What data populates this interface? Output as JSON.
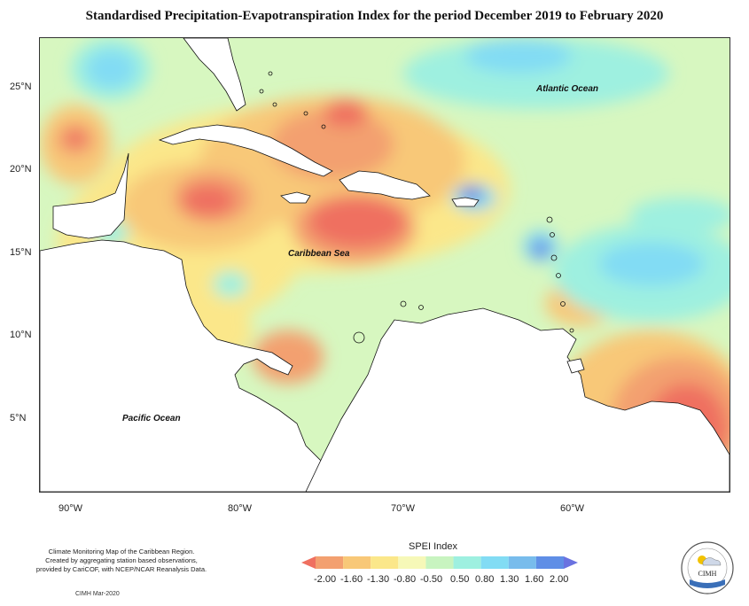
{
  "title": "Standardised Precipitation-Evapotranspiration Index for the period December 2019 to February 2020",
  "map": {
    "latitude_labels": [
      "25°N",
      "20°N",
      "15°N",
      "10°N",
      "5°N"
    ],
    "longitude_labels": [
      "90°W",
      "80°W",
      "70°W",
      "60°W"
    ],
    "ocean_labels": {
      "atlantic": "Atlantic Ocean",
      "caribbean": "Caribbean Sea",
      "pacific": "Pacific Ocean"
    },
    "background_color": "#d7f7c0"
  },
  "legend": {
    "title": "SPEI Index",
    "ticks": [
      "-2.00",
      "-1.60",
      "-1.30",
      "-0.80",
      "-0.50",
      "0.50",
      "0.80",
      "1.30",
      "1.60",
      "2.00"
    ],
    "colors": [
      "#ef7060",
      "#f3a070",
      "#f8c878",
      "#fbe78a",
      "#f6f8b8",
      "#c8f4c0",
      "#9ef0e0",
      "#82dcf4",
      "#78bcec",
      "#5f8ee6",
      "#6a72e0"
    ]
  },
  "footer": {
    "line1": "Climate Monitoring Map of the Caribbean Region.",
    "line2": "Created by aggregating station based observations,",
    "line3": "provided by CariCOF, with NCEP/NCAR Reanalysis Data.",
    "date": "CIMH Mar-2020"
  },
  "logo": {
    "text": "CIMH"
  }
}
